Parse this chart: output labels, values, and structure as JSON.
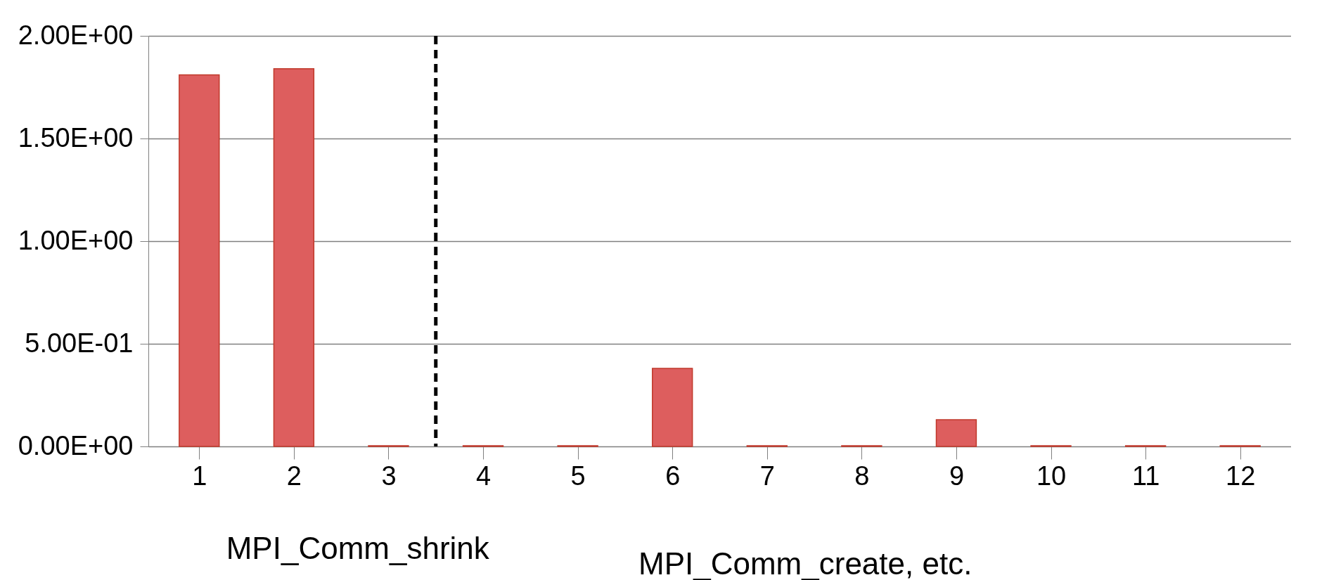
{
  "chart_data": {
    "type": "bar",
    "x": [
      1,
      2,
      3,
      4,
      5,
      6,
      7,
      8,
      9,
      10,
      11,
      12
    ],
    "values": [
      1.81,
      1.84,
      0.003,
      0.003,
      0.003,
      0.38,
      0.003,
      0.003,
      0.13,
      0.003,
      0.003,
      0.003
    ],
    "color": "#dd5e5e",
    "xlim": [
      0.5,
      12.5
    ],
    "xticks": [
      1,
      2,
      3,
      4,
      5,
      6,
      7,
      8,
      9,
      10,
      11,
      12
    ],
    "ylim": [
      0,
      2
    ],
    "yticks": [
      {
        "value": 0,
        "label": "0.00E+00"
      },
      {
        "value": 0.5,
        "label": "5.00E-01"
      },
      {
        "value": 1,
        "label": "1.00E+00"
      },
      {
        "value": 1.5,
        "label": "1.50E+00"
      },
      {
        "value": 2,
        "label": "2.00E+00"
      }
    ],
    "grid": "y",
    "ref_lines": [
      {
        "axis": "x",
        "value": 3.5,
        "color": "#000000",
        "line_style": "dashed"
      }
    ],
    "annotations": [
      "MPI_Comm_shrink",
      "MPI_Comm_create, etc."
    ]
  }
}
